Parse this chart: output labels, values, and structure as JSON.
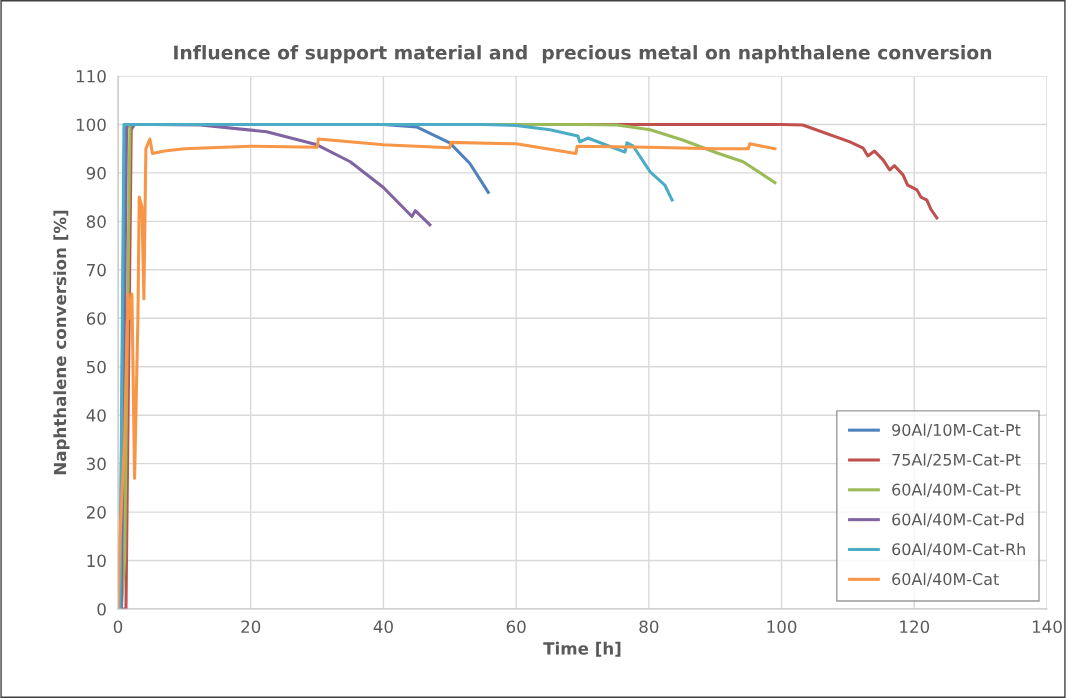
{
  "chart_data": {
    "type": "line",
    "title": "Influence of support material and  precious metal on naphthalene conversion",
    "xlabel": "Time [h]",
    "ylabel": "Naphthalene conversion [%]",
    "xlim": [
      0,
      140
    ],
    "xticks": [
      0,
      20,
      40,
      60,
      80,
      100,
      120,
      140
    ],
    "ylim": [
      0,
      110
    ],
    "yticks": [
      0,
      10,
      20,
      30,
      40,
      50,
      60,
      70,
      80,
      90,
      100,
      110
    ],
    "grid": true,
    "legend": "lower right",
    "marker": "none",
    "line_style": "solid",
    "series": [
      {
        "name": "90Al/10M-Cat-Pt",
        "color": "#4f81bd",
        "x": [
          0.3,
          1,
          1.5,
          2,
          2.5,
          10,
          30,
          40,
          45,
          50,
          53,
          55.8
        ],
        "values": [
          0,
          100,
          100,
          99,
          100,
          100,
          100,
          100,
          99.5,
          96.2,
          92,
          86
        ]
      },
      {
        "name": "75Al/25M-Cat-Pt",
        "color": "#c0504d",
        "x": [
          0.5,
          1.2,
          2,
          100,
          103.2,
          110.3,
          112.3,
          113,
          114,
          115.3,
          116.3,
          117,
          118.3,
          119,
          120.4,
          121,
          121.9,
          122.5,
          123.4
        ],
        "values": [
          0,
          0,
          100,
          100,
          99.9,
          96.4,
          95.1,
          93.5,
          94.5,
          92.7,
          90.6,
          91.5,
          89.6,
          87.5,
          86.5,
          85,
          84.4,
          82.5,
          80.7
        ]
      },
      {
        "name": "60Al/40M-Cat-Pt",
        "color": "#9bbb59",
        "x": [
          0.5,
          1,
          1.8,
          70,
          75.2,
          80.2,
          85.1,
          90.3,
          94.2,
          99
        ],
        "values": [
          0,
          10,
          100,
          100,
          99.9,
          98.9,
          96.8,
          94.1,
          92.3,
          88
        ]
      },
      {
        "name": "60Al/40M-Cat-Pd",
        "color": "#8064a2",
        "x": [
          0.5,
          1.3,
          5,
          12.4,
          22.4,
          30,
          35,
          40,
          44.3,
          44.8,
          47
        ],
        "values": [
          0,
          100,
          100,
          99.9,
          98.5,
          95.8,
          92.3,
          87,
          81,
          82.2,
          79.3
        ]
      },
      {
        "name": "60Al/40M-Cat-Rh",
        "color": "#4bacc6",
        "x": [
          0.3,
          0.9,
          10,
          55,
          60,
          65.1,
          69.3,
          69.6,
          70.8,
          76.4,
          76.7,
          77.6,
          80.2,
          82.4,
          83.5
        ],
        "values": [
          0,
          100,
          100,
          100,
          99.8,
          98.9,
          97.6,
          96.4,
          97.2,
          94.3,
          96.2,
          95.6,
          90.2,
          87.5,
          84.4
        ]
      },
      {
        "name": "60Al/40M-Cat",
        "color": "#f79646",
        "x": [
          0,
          0.3,
          1,
          1.5,
          1.8,
          2.1,
          2.5,
          3,
          3.2,
          3.6,
          3.9,
          4.2,
          4.8,
          5.2,
          7,
          10,
          20,
          30,
          30.2,
          40,
          50,
          50.2,
          60,
          69,
          69.2,
          80,
          90,
          95,
          95.2,
          99
        ],
        "values": [
          0,
          15,
          35,
          65,
          60,
          65,
          27,
          60,
          85,
          83,
          64,
          95,
          97,
          94,
          94.5,
          95,
          95.5,
          95.3,
          97,
          95.8,
          95.2,
          96.3,
          96,
          94,
          95.5,
          95.3,
          95,
          95,
          96,
          95
        ]
      }
    ]
  }
}
